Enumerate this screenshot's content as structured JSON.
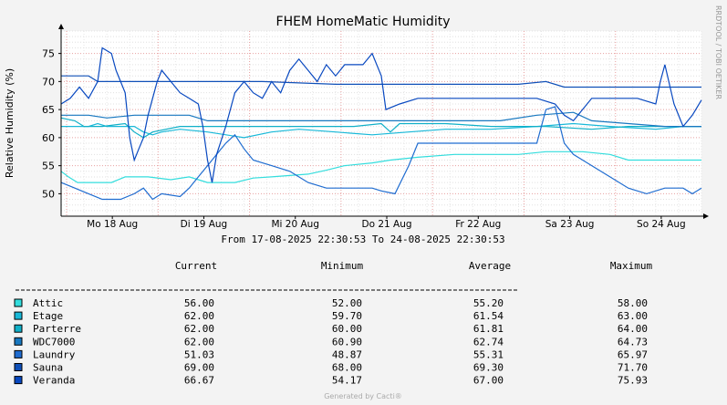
{
  "chart_data": {
    "type": "line",
    "title": "FHEM HomeMatic Humidity",
    "ylabel": "Relative Humidity (%)",
    "xlabel": "",
    "ylim": [
      46,
      79
    ],
    "yticks": [
      50,
      55,
      60,
      65,
      70,
      75
    ],
    "xlim_days": [
      0,
      7
    ],
    "xticks": [
      {
        "label": "Mo 18 Aug",
        "day": 0.56
      },
      {
        "label": "Di 19 Aug",
        "day": 1.56
      },
      {
        "label": "Mi 20 Aug",
        "day": 2.56
      },
      {
        "label": "Do 21 Aug",
        "day": 3.56
      },
      {
        "label": "Fr 22 Aug",
        "day": 4.56
      },
      {
        "label": "Sa 23 Aug",
        "day": 5.56
      },
      {
        "label": "So 24 Aug",
        "day": 6.56
      }
    ],
    "grid": true,
    "side_label": "RRDTOOL / TOBI OETIKER",
    "period": "From 17-08-2025 22:30:53 To 24-08-2025 22:30:53",
    "legend_headers": [
      "Current",
      "Minimum",
      "Average",
      "Maximum"
    ],
    "series": [
      {
        "name": "Attic",
        "color": "#33dddd",
        "current": "56.00",
        "minimum": "52.00",
        "average": "55.20",
        "maximum": "58.00",
        "points": [
          [
            0,
            54
          ],
          [
            0.08,
            53
          ],
          [
            0.18,
            52
          ],
          [
            0.55,
            52
          ],
          [
            0.7,
            53
          ],
          [
            0.95,
            53
          ],
          [
            1.2,
            52.5
          ],
          [
            1.4,
            53
          ],
          [
            1.5,
            52.5
          ],
          [
            1.6,
            52
          ],
          [
            1.9,
            52
          ],
          [
            2.1,
            52.8
          ],
          [
            2.3,
            53
          ],
          [
            2.7,
            53.5
          ],
          [
            2.9,
            54.2
          ],
          [
            3.1,
            55
          ],
          [
            3.4,
            55.5
          ],
          [
            3.6,
            56
          ],
          [
            3.9,
            56.5
          ],
          [
            4.3,
            57
          ],
          [
            5.0,
            57
          ],
          [
            5.3,
            57.5
          ],
          [
            5.7,
            57.5
          ],
          [
            6.0,
            57
          ],
          [
            6.2,
            56
          ],
          [
            6.8,
            56
          ],
          [
            7,
            56
          ]
        ]
      },
      {
        "name": "Etage",
        "color": "#18b8d8",
        "current": "62.00",
        "minimum": "59.70",
        "average": "61.54",
        "maximum": "63.00",
        "points": [
          [
            0,
            62
          ],
          [
            0.3,
            62
          ],
          [
            0.4,
            62.5
          ],
          [
            0.5,
            62
          ],
          [
            0.8,
            62
          ],
          [
            0.9,
            61
          ],
          [
            1.0,
            60.5
          ],
          [
            1.1,
            61
          ],
          [
            1.3,
            61.5
          ],
          [
            1.6,
            61
          ],
          [
            2.0,
            60
          ],
          [
            2.3,
            61
          ],
          [
            2.6,
            61.5
          ],
          [
            3.0,
            61
          ],
          [
            3.4,
            60.5
          ],
          [
            3.8,
            61
          ],
          [
            4.2,
            61.5
          ],
          [
            4.7,
            61.5
          ],
          [
            5.2,
            62
          ],
          [
            5.6,
            62.5
          ],
          [
            6.0,
            62
          ],
          [
            6.5,
            61.5
          ],
          [
            6.8,
            62
          ],
          [
            7,
            62
          ]
        ]
      },
      {
        "name": "Parterre",
        "color": "#10b0c8",
        "current": "62.00",
        "minimum": "60.00",
        "average": "61.81",
        "maximum": "64.00",
        "points": [
          [
            0,
            63.5
          ],
          [
            0.15,
            63
          ],
          [
            0.25,
            62
          ],
          [
            0.45,
            62
          ],
          [
            0.7,
            62.5
          ],
          [
            0.8,
            61
          ],
          [
            0.9,
            60
          ],
          [
            1.0,
            61
          ],
          [
            1.3,
            62
          ],
          [
            1.6,
            62
          ],
          [
            2.0,
            62
          ],
          [
            2.4,
            62
          ],
          [
            2.8,
            62
          ],
          [
            3.2,
            62
          ],
          [
            3.5,
            62.5
          ],
          [
            3.6,
            61
          ],
          [
            3.7,
            62.5
          ],
          [
            4.2,
            62.5
          ],
          [
            4.7,
            62
          ],
          [
            5.3,
            62
          ],
          [
            5.8,
            61.5
          ],
          [
            6.2,
            62
          ],
          [
            6.6,
            62
          ],
          [
            7,
            62
          ]
        ]
      },
      {
        "name": "WDC7000",
        "color": "#1878c0",
        "current": "62.00",
        "minimum": "60.90",
        "average": "62.74",
        "maximum": "64.73",
        "points": [
          [
            0,
            64
          ],
          [
            0.3,
            64
          ],
          [
            0.5,
            63.5
          ],
          [
            0.8,
            64
          ],
          [
            1.4,
            64
          ],
          [
            1.6,
            63
          ],
          [
            2.0,
            63
          ],
          [
            2.6,
            63
          ],
          [
            3.2,
            63
          ],
          [
            3.8,
            63
          ],
          [
            4.3,
            63
          ],
          [
            4.8,
            63
          ],
          [
            5.2,
            64
          ],
          [
            5.6,
            64.5
          ],
          [
            5.8,
            63
          ],
          [
            6.2,
            62.5
          ],
          [
            6.6,
            62
          ],
          [
            7,
            62
          ]
        ]
      },
      {
        "name": "Laundry",
        "color": "#1f6cd0",
        "current": "51.03",
        "minimum": "48.87",
        "average": "55.31",
        "maximum": "65.97",
        "points": [
          [
            0,
            52
          ],
          [
            0.15,
            51
          ],
          [
            0.3,
            50
          ],
          [
            0.45,
            49
          ],
          [
            0.65,
            49
          ],
          [
            0.8,
            50
          ],
          [
            0.9,
            51
          ],
          [
            1.0,
            49
          ],
          [
            1.1,
            50
          ],
          [
            1.3,
            49.5
          ],
          [
            1.4,
            51
          ],
          [
            1.5,
            53
          ],
          [
            1.6,
            55
          ],
          [
            1.7,
            57
          ],
          [
            1.8,
            59
          ],
          [
            1.9,
            60.5
          ],
          [
            2.0,
            58
          ],
          [
            2.1,
            56
          ],
          [
            2.3,
            55
          ],
          [
            2.5,
            54
          ],
          [
            2.7,
            52
          ],
          [
            2.9,
            51
          ],
          [
            3.1,
            51
          ],
          [
            3.4,
            51
          ],
          [
            3.5,
            50.5
          ],
          [
            3.65,
            50
          ],
          [
            3.8,
            55
          ],
          [
            3.9,
            59
          ],
          [
            4.2,
            59
          ],
          [
            4.7,
            59
          ],
          [
            5.0,
            59
          ],
          [
            5.2,
            59
          ],
          [
            5.3,
            65
          ],
          [
            5.4,
            65.5
          ],
          [
            5.5,
            59
          ],
          [
            5.6,
            57
          ],
          [
            5.8,
            55
          ],
          [
            6.0,
            53
          ],
          [
            6.2,
            51
          ],
          [
            6.4,
            50
          ],
          [
            6.6,
            51
          ],
          [
            6.8,
            51
          ],
          [
            6.9,
            50
          ],
          [
            7,
            51
          ]
        ]
      },
      {
        "name": "Sauna",
        "color": "#1050b8",
        "current": "69.00",
        "minimum": "68.00",
        "average": "69.30",
        "maximum": "71.70",
        "points": [
          [
            0,
            71
          ],
          [
            0.3,
            71
          ],
          [
            0.4,
            70
          ],
          [
            0.8,
            70
          ],
          [
            1.5,
            70
          ],
          [
            2.2,
            70
          ],
          [
            3.0,
            69.5
          ],
          [
            3.5,
            69.5
          ],
          [
            4.2,
            69.5
          ],
          [
            5.0,
            69.5
          ],
          [
            5.3,
            70
          ],
          [
            5.5,
            69
          ],
          [
            6.0,
            69
          ],
          [
            6.5,
            69
          ],
          [
            7,
            69
          ]
        ]
      },
      {
        "name": "Veranda",
        "color": "#0848c0",
        "current": "66.67",
        "minimum": "54.17",
        "average": "67.00",
        "maximum": "75.93",
        "points": [
          [
            0,
            66
          ],
          [
            0.1,
            67
          ],
          [
            0.2,
            69
          ],
          [
            0.3,
            67
          ],
          [
            0.4,
            70
          ],
          [
            0.45,
            76
          ],
          [
            0.55,
            75
          ],
          [
            0.6,
            72
          ],
          [
            0.7,
            68
          ],
          [
            0.75,
            60
          ],
          [
            0.8,
            56
          ],
          [
            0.85,
            58
          ],
          [
            0.9,
            60
          ],
          [
            0.95,
            64
          ],
          [
            1.0,
            67
          ],
          [
            1.05,
            70
          ],
          [
            1.1,
            72
          ],
          [
            1.2,
            70
          ],
          [
            1.3,
            68
          ],
          [
            1.4,
            67
          ],
          [
            1.5,
            66
          ],
          [
            1.55,
            62
          ],
          [
            1.6,
            56
          ],
          [
            1.65,
            52
          ],
          [
            1.7,
            57
          ],
          [
            1.8,
            62
          ],
          [
            1.9,
            68
          ],
          [
            2.0,
            70
          ],
          [
            2.1,
            68
          ],
          [
            2.2,
            67
          ],
          [
            2.3,
            70
          ],
          [
            2.4,
            68
          ],
          [
            2.5,
            72
          ],
          [
            2.6,
            74
          ],
          [
            2.7,
            72
          ],
          [
            2.8,
            70
          ],
          [
            2.9,
            73
          ],
          [
            3.0,
            71
          ],
          [
            3.1,
            73
          ],
          [
            3.3,
            73
          ],
          [
            3.4,
            75
          ],
          [
            3.5,
            71
          ],
          [
            3.55,
            65
          ],
          [
            3.7,
            66
          ],
          [
            3.9,
            67
          ],
          [
            4.1,
            67
          ],
          [
            4.3,
            67
          ],
          [
            4.6,
            67
          ],
          [
            4.9,
            67
          ],
          [
            5.2,
            67
          ],
          [
            5.4,
            66
          ],
          [
            5.5,
            64
          ],
          [
            5.6,
            63
          ],
          [
            5.8,
            67
          ],
          [
            6.0,
            67
          ],
          [
            6.3,
            67
          ],
          [
            6.5,
            66
          ],
          [
            6.55,
            70
          ],
          [
            6.6,
            73
          ],
          [
            6.7,
            66
          ],
          [
            6.8,
            62
          ],
          [
            6.9,
            64
          ],
          [
            7,
            66.7
          ]
        ]
      }
    ]
  },
  "footer": "Generated by Cacti®"
}
